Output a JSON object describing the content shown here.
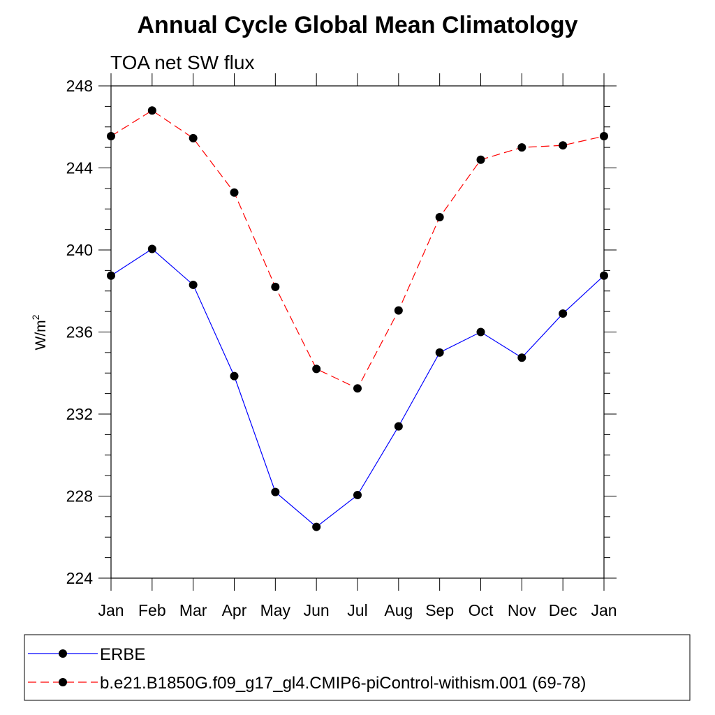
{
  "chart_data": {
    "type": "line",
    "title": "Annual Cycle Global Mean Climatology",
    "subtitle": "TOA net SW flux",
    "ylabel": "W/m",
    "ylabel_superscript": "2",
    "xlabel": "",
    "categories": [
      "Jan",
      "Feb",
      "Mar",
      "Apr",
      "May",
      "Jun",
      "Jul",
      "Aug",
      "Sep",
      "Oct",
      "Nov",
      "Dec",
      "Jan"
    ],
    "yticks": [
      224,
      228,
      232,
      236,
      240,
      244,
      248
    ],
    "ylim": [
      224,
      248
    ],
    "series": [
      {
        "name": "ERBE",
        "color": "#0000ff",
        "dash": "solid",
        "marker": "filled-circle",
        "values": [
          238.75,
          240.05,
          238.3,
          233.85,
          228.2,
          226.5,
          228.05,
          231.4,
          235.0,
          236.0,
          234.75,
          236.9,
          238.75
        ]
      },
      {
        "name": "b.e21.B1850G.f09_g17_gl4.CMIP6-piControl-withism.001 (69-78)",
        "color": "#ff0000",
        "dash": "dashed",
        "marker": "filled-circle",
        "values": [
          245.55,
          246.8,
          245.45,
          242.8,
          238.2,
          234.2,
          233.25,
          237.05,
          241.6,
          244.4,
          245.0,
          245.1,
          245.55
        ]
      }
    ],
    "legend_position": "bottom"
  }
}
